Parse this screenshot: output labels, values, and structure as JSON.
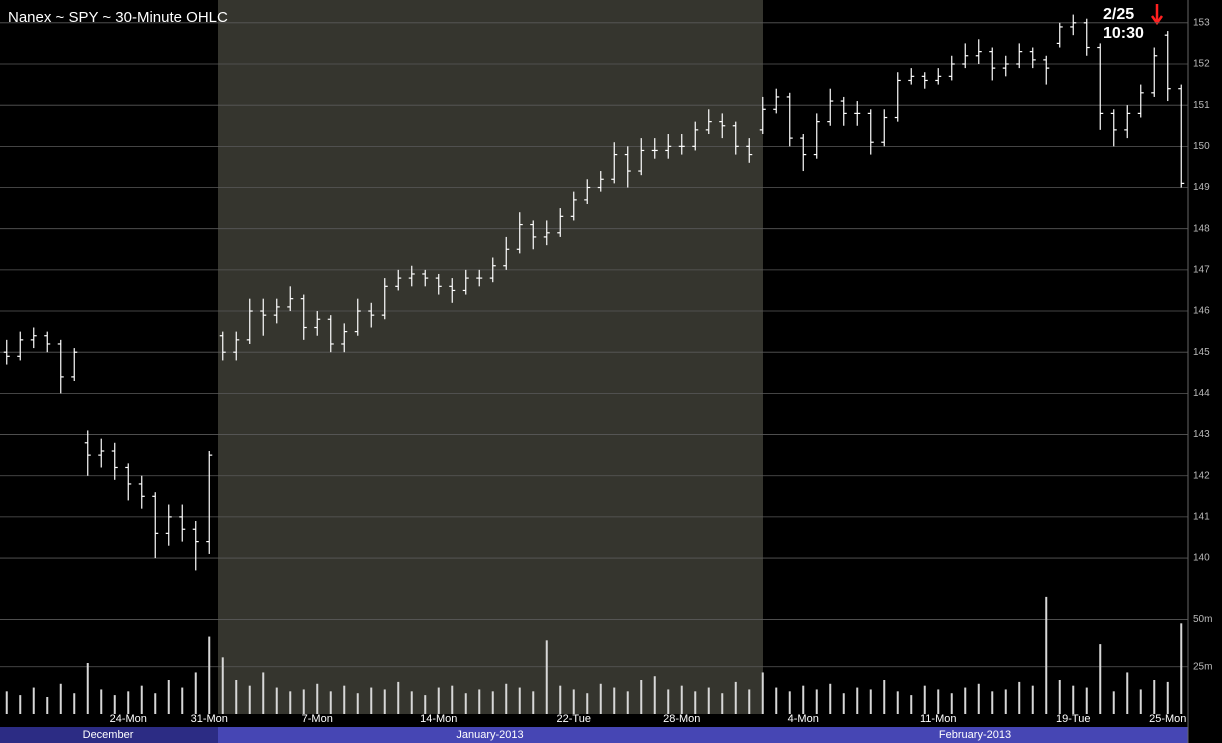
{
  "chart_data": {
    "type": "ohlc",
    "title": "Nanex ~ SPY ~ 30-Minute OHLC",
    "annotations": [
      "2/25",
      "10:30"
    ],
    "months": [
      "December",
      "January-2013",
      "February-2013"
    ],
    "categories": [
      null,
      null,
      null,
      null,
      null,
      null,
      null,
      null,
      null,
      "24-Mon",
      null,
      null,
      null,
      null,
      null,
      "31-Mon",
      null,
      null,
      null,
      null,
      null,
      null,
      null,
      "7-Mon",
      null,
      null,
      null,
      null,
      null,
      null,
      null,
      null,
      "14-Mon",
      null,
      null,
      null,
      null,
      null,
      null,
      null,
      null,
      null,
      "22-Tue",
      null,
      null,
      null,
      null,
      null,
      null,
      null,
      "28-Mon",
      null,
      null,
      null,
      null,
      null,
      null,
      null,
      null,
      "4-Mon",
      null,
      null,
      null,
      null,
      null,
      null,
      null,
      null,
      null,
      "11-Mon",
      null,
      null,
      null,
      null,
      null,
      null,
      null,
      null,
      null,
      "19-Tue",
      null,
      null,
      null,
      null,
      null,
      null,
      "25-Mon",
      null
    ],
    "open": [
      145.0,
      144.9,
      145.3,
      145.4,
      145.2,
      144.4,
      142.8,
      142.5,
      142.6,
      142.2,
      141.8,
      141.5,
      140.6,
      141.0,
      140.7,
      140.4,
      145.4,
      145.0,
      145.3,
      146.0,
      145.9,
      146.1,
      146.3,
      145.6,
      145.8,
      145.2,
      145.5,
      146.0,
      145.9,
      146.6,
      146.8,
      146.9,
      146.8,
      146.6,
      146.5,
      146.8,
      146.8,
      147.1,
      147.5,
      148.1,
      147.8,
      147.9,
      148.3,
      148.7,
      149.0,
      149.2,
      149.8,
      149.4,
      149.9,
      149.9,
      150.0,
      150.0,
      150.4,
      150.6,
      150.5,
      150.0,
      150.4,
      150.9,
      151.2,
      150.2,
      149.8,
      150.6,
      151.1,
      150.8,
      150.8,
      150.1,
      150.7,
      151.6,
      151.7,
      151.6,
      151.7,
      152.0,
      152.2,
      152.3,
      151.9,
      152.0,
      152.3,
      152.1,
      152.5,
      152.9,
      153.0,
      152.4,
      150.8,
      150.4,
      150.8,
      151.3,
      152.7,
      151.4
    ],
    "high": [
      145.3,
      145.5,
      145.6,
      145.5,
      145.3,
      145.1,
      143.1,
      142.9,
      142.8,
      142.3,
      142.0,
      141.6,
      141.3,
      141.3,
      140.9,
      142.6,
      145.5,
      145.5,
      146.3,
      146.3,
      146.3,
      146.6,
      146.4,
      146.0,
      145.9,
      145.7,
      146.3,
      146.2,
      146.8,
      147.0,
      147.1,
      147.0,
      146.9,
      146.8,
      147.0,
      147.0,
      147.3,
      147.8,
      148.4,
      148.2,
      148.2,
      148.5,
      148.9,
      149.2,
      149.4,
      150.1,
      150.0,
      150.2,
      150.2,
      150.3,
      150.3,
      150.6,
      150.9,
      150.8,
      150.6,
      150.2,
      151.2,
      151.4,
      151.3,
      150.3,
      150.8,
      151.4,
      151.2,
      151.1,
      150.9,
      150.9,
      151.8,
      151.9,
      151.8,
      151.9,
      152.2,
      152.5,
      152.6,
      152.4,
      152.2,
      152.5,
      152.4,
      152.2,
      153.0,
      153.2,
      153.1,
      152.5,
      150.9,
      151.0,
      151.5,
      152.4,
      152.8,
      151.5
    ],
    "low": [
      144.7,
      144.8,
      145.1,
      145.0,
      144.0,
      144.3,
      142.0,
      142.2,
      141.9,
      141.4,
      141.2,
      140.0,
      140.3,
      140.4,
      139.7,
      140.1,
      144.8,
      144.8,
      145.2,
      145.4,
      145.7,
      146.0,
      145.3,
      145.4,
      145.0,
      145.0,
      145.4,
      145.6,
      145.8,
      146.5,
      146.6,
      146.6,
      146.4,
      146.2,
      146.4,
      146.6,
      146.7,
      147.0,
      147.4,
      147.5,
      147.6,
      147.8,
      148.2,
      148.6,
      148.9,
      149.1,
      149.0,
      149.3,
      149.7,
      149.7,
      149.8,
      149.9,
      150.3,
      150.2,
      149.8,
      149.6,
      150.3,
      150.8,
      150.0,
      149.4,
      149.7,
      150.5,
      150.5,
      150.5,
      149.8,
      150.0,
      150.6,
      151.5,
      151.4,
      151.5,
      151.6,
      151.9,
      152.0,
      151.6,
      151.7,
      151.9,
      151.9,
      151.5,
      152.4,
      152.7,
      152.2,
      150.4,
      150.0,
      150.2,
      150.7,
      151.2,
      151.1,
      149.0
    ],
    "close": [
      144.9,
      145.3,
      145.4,
      145.2,
      144.4,
      145.0,
      142.5,
      142.6,
      142.2,
      141.8,
      141.5,
      140.6,
      141.0,
      140.7,
      140.4,
      142.5,
      145.0,
      145.3,
      146.0,
      145.9,
      146.1,
      146.3,
      145.6,
      145.8,
      145.2,
      145.5,
      146.0,
      145.9,
      146.6,
      146.8,
      146.9,
      146.8,
      146.6,
      146.5,
      146.8,
      146.8,
      147.1,
      147.5,
      148.1,
      147.8,
      147.9,
      148.3,
      148.7,
      149.0,
      149.2,
      149.8,
      149.4,
      149.9,
      149.9,
      150.0,
      150.0,
      150.4,
      150.6,
      150.5,
      150.0,
      149.8,
      150.9,
      151.2,
      150.2,
      149.8,
      150.6,
      151.1,
      150.8,
      150.8,
      150.1,
      150.7,
      151.6,
      151.7,
      151.6,
      151.7,
      152.0,
      152.2,
      152.3,
      151.9,
      152.0,
      152.3,
      152.1,
      151.9,
      152.9,
      153.0,
      152.4,
      150.8,
      150.4,
      150.8,
      151.3,
      152.2,
      151.4,
      149.1
    ],
    "volume": [
      12,
      10,
      14,
      9,
      16,
      11,
      27,
      13,
      10,
      12,
      15,
      11,
      18,
      14,
      22,
      41,
      30,
      18,
      15,
      22,
      14,
      12,
      13,
      16,
      12,
      15,
      11,
      14,
      13,
      17,
      12,
      10,
      14,
      15,
      11,
      13,
      12,
      16,
      14,
      12,
      39,
      15,
      13,
      11,
      16,
      14,
      12,
      18,
      20,
      13,
      15,
      12,
      14,
      11,
      17,
      13,
      22,
      14,
      12,
      15,
      13,
      16,
      11,
      14,
      13,
      18,
      12,
      10,
      15,
      13,
      11,
      14,
      16,
      12,
      13,
      17,
      15,
      62,
      18,
      15,
      14,
      37,
      12,
      22,
      13,
      18,
      17,
      48
    ],
    "color": "#ffffff",
    "ylim": [
      139.2,
      153.53
    ],
    "yticks": [
      140,
      141,
      142,
      143,
      144,
      145,
      146,
      147,
      148,
      149,
      150,
      151,
      152,
      153
    ],
    "volume_ylim": [
      0,
      63
    ],
    "volume_yticks": [
      {
        "value": 25,
        "label": "25m"
      },
      {
        "value": 50,
        "label": "50m"
      }
    ],
    "grid": true
  }
}
